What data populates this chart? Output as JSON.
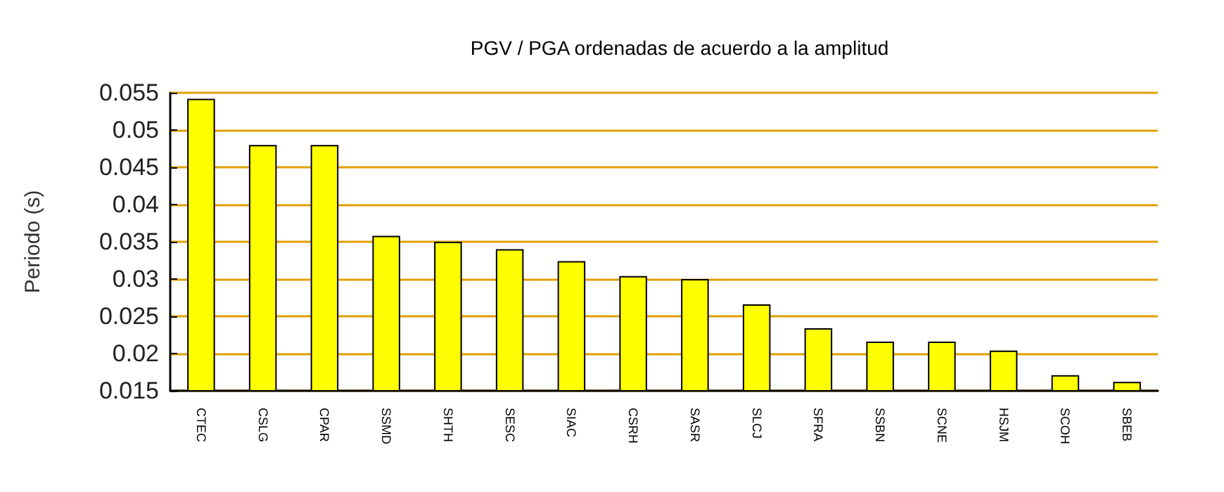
{
  "chart_data": {
    "type": "bar",
    "title": "PGV / PGA ordenadas de acuerdo a la amplitud",
    "ylabel": "Periodo (s)",
    "categories": [
      "CTEC",
      "CSLG",
      "CPAR",
      "SSMD",
      "SHTH",
      "SESC",
      "SIAC",
      "CSRH",
      "SASR",
      "SLCJ",
      "SFRA",
      "SSBN",
      "SCNE",
      "HSJM",
      "SCOH",
      "SBEB"
    ],
    "values": [
      0.0542,
      0.048,
      0.048,
      0.0358,
      0.035,
      0.034,
      0.0324,
      0.0304,
      0.03,
      0.0266,
      0.0234,
      0.0216,
      0.0216,
      0.0204,
      0.0171,
      0.0162
    ],
    "color": "#ffff00",
    "ylim": [
      0.015,
      0.055
    ],
    "yticks": [
      0.015,
      0.02,
      0.025,
      0.03,
      0.035,
      0.04,
      0.045,
      0.05,
      0.055
    ],
    "grid": "y"
  }
}
